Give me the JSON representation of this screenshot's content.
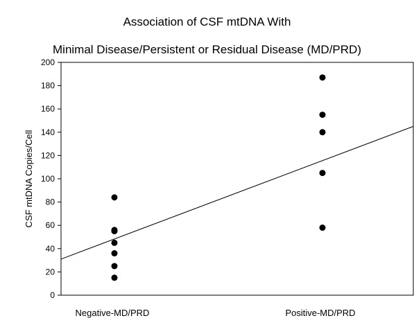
{
  "chart_data": {
    "type": "scatter",
    "title_line1": "Association of CSF mtDNA With",
    "title_line2": "Minimal Disease/Persistent or Residual Disease (MD/PRD)",
    "xlabel": "",
    "ylabel": "CSF mtDNA Copies/Cell",
    "categories": [
      "Negative-MD/PRD",
      "Positive-MD/PRD"
    ],
    "ylim": [
      0,
      200
    ],
    "yticks": [
      0,
      20,
      40,
      60,
      80,
      100,
      120,
      140,
      160,
      180,
      200
    ],
    "grid": false,
    "series": [
      {
        "category": "Negative-MD/PRD",
        "values": [
          84,
          56,
          55,
          45,
          36,
          25,
          15
        ]
      },
      {
        "category": "Positive-MD/PRD",
        "values": [
          187,
          155,
          140,
          105,
          58
        ]
      }
    ],
    "trend_line": {
      "y_at_left_edge": 31,
      "y_at_right_edge": 145
    },
    "marker_color": "#000000",
    "line_color": "#000000"
  }
}
